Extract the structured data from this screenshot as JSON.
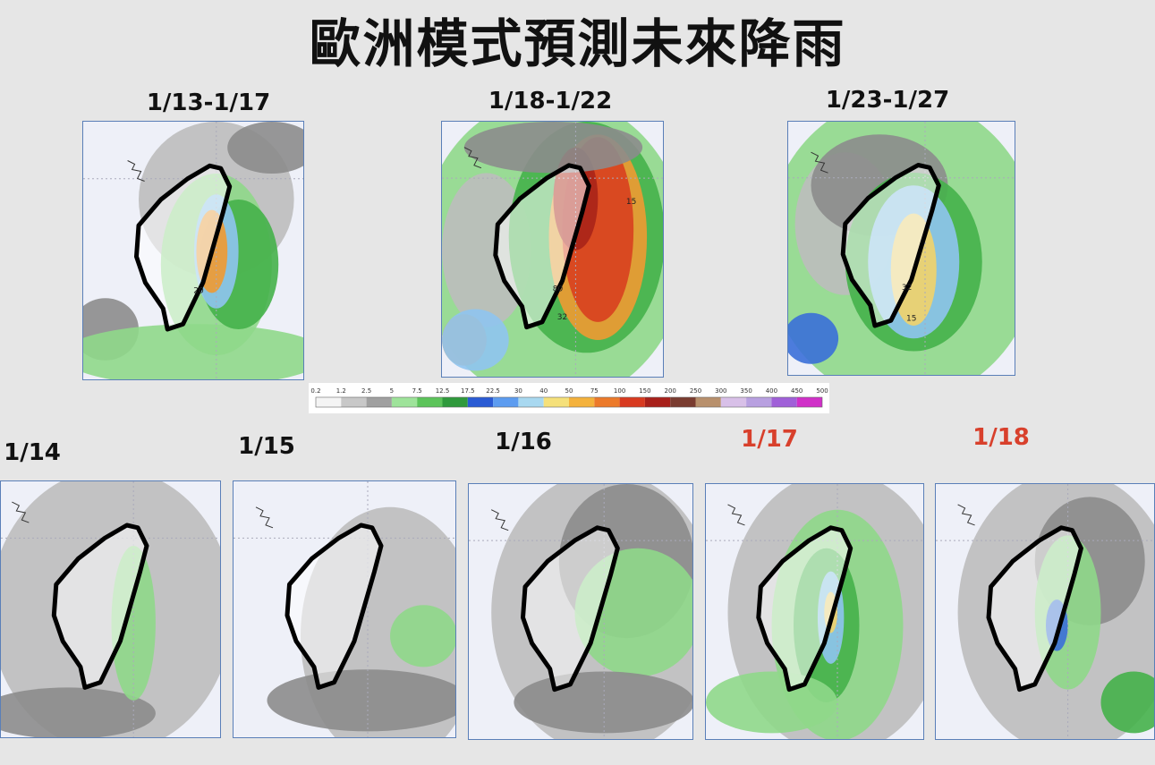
{
  "title": "歐洲模式預測未來降雨",
  "top_panels": [
    {
      "label": "1/13-1/17",
      "map_labels": [
        "20"
      ]
    },
    {
      "label": "1/18-1/22",
      "map_labels": [
        "15",
        "80",
        "32"
      ]
    },
    {
      "label": "1/23-1/27",
      "map_labels": [
        "32",
        "15"
      ]
    }
  ],
  "bottom_panels": [
    {
      "label": "1/14"
    },
    {
      "label": "1/15"
    },
    {
      "label": "1/16"
    },
    {
      "label": "1/17"
    },
    {
      "label": "1/18"
    }
  ],
  "colorbar": {
    "labels": [
      "0.2",
      "1.2",
      "2.5",
      "5",
      "7.5",
      "12.5",
      "17.5",
      "22.5",
      "30",
      "40",
      "50",
      "75",
      "100",
      "150",
      "200",
      "250",
      "300",
      "350",
      "400",
      "450",
      "500"
    ],
    "colors": [
      "#f4f4f4",
      "#c8c8c8",
      "#a0a0a0",
      "#9ee39a",
      "#5cc45a",
      "#2f9a3c",
      "#2a5bd4",
      "#5c9cf0",
      "#a8d8f0",
      "#f5e07a",
      "#f4b23c",
      "#ec7a2a",
      "#d83a20",
      "#a8201a",
      "#7a3c30",
      "#b8906c",
      "#d8c0e8",
      "#b8a0e0",
      "#a060d8",
      "#d030c8"
    ]
  }
}
